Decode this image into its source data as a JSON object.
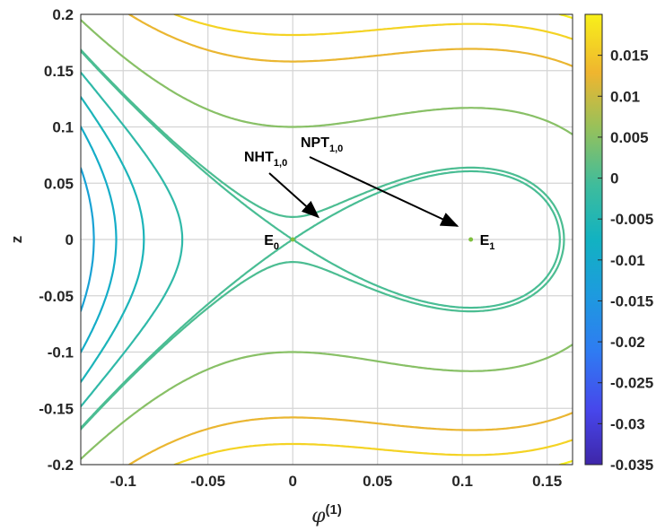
{
  "chart_data": {
    "type": "contour",
    "function": "H = z^2/2 + phi^2/2 - phi^3/3 / 0.105  (cubic potential contour map)",
    "x": {
      "label": "φ",
      "superscript": "(1)",
      "lim": [
        -0.125,
        0.165
      ],
      "ticks": [
        -0.1,
        -0.05,
        0,
        0.05,
        0.1,
        0.15
      ],
      "tick_labels": [
        "-0.1",
        "-0.05",
        "0",
        "0.05",
        "0.1",
        "0.15"
      ]
    },
    "y": {
      "label": "z",
      "lim": [
        -0.2,
        0.2
      ],
      "ticks": [
        -0.2,
        -0.15,
        -0.1,
        -0.05,
        0,
        0.05,
        0.1,
        0.15,
        0.2
      ],
      "tick_labels": [
        "-0.2",
        "-0.15",
        "-0.1",
        "-0.05",
        "0",
        "0.05",
        "0.1",
        "0.15",
        "0.2"
      ]
    },
    "colorbar": {
      "lim": [
        -0.035,
        0.02
      ],
      "ticks": [
        -0.035,
        -0.03,
        -0.025,
        -0.02,
        -0.015,
        -0.01,
        -0.005,
        0,
        0.005,
        0.01,
        0.015
      ],
      "tick_labels": [
        "-0.035",
        "-0.03",
        "-0.025",
        "-0.02",
        "-0.015",
        "-0.01",
        "-0.005",
        "0",
        "0.005",
        "0.01",
        "0.015"
      ],
      "colormap": "parula"
    },
    "levels": [
      -0.033,
      -0.03,
      -0.027,
      -0.024,
      -0.021,
      -0.018,
      -0.015,
      -0.012,
      -0.009,
      -0.006,
      -0.003,
      0,
      0.0002,
      0.005,
      0.0125,
      0.0165,
      0.02
    ],
    "grid": true,
    "equilibria": [
      {
        "name": "E",
        "sub": "0",
        "x": 0,
        "y": 0
      },
      {
        "name": "E",
        "sub": "1",
        "x": 0.105,
        "y": 0
      }
    ],
    "annotations": [
      {
        "name": "NHT",
        "sub": "1,0",
        "arrow_to": {
          "x": 0.015,
          "y": 0.02
        }
      },
      {
        "name": "NPT",
        "sub": "1,0",
        "arrow_to": {
          "x": 0.097,
          "y": 0.012
        }
      }
    ]
  }
}
